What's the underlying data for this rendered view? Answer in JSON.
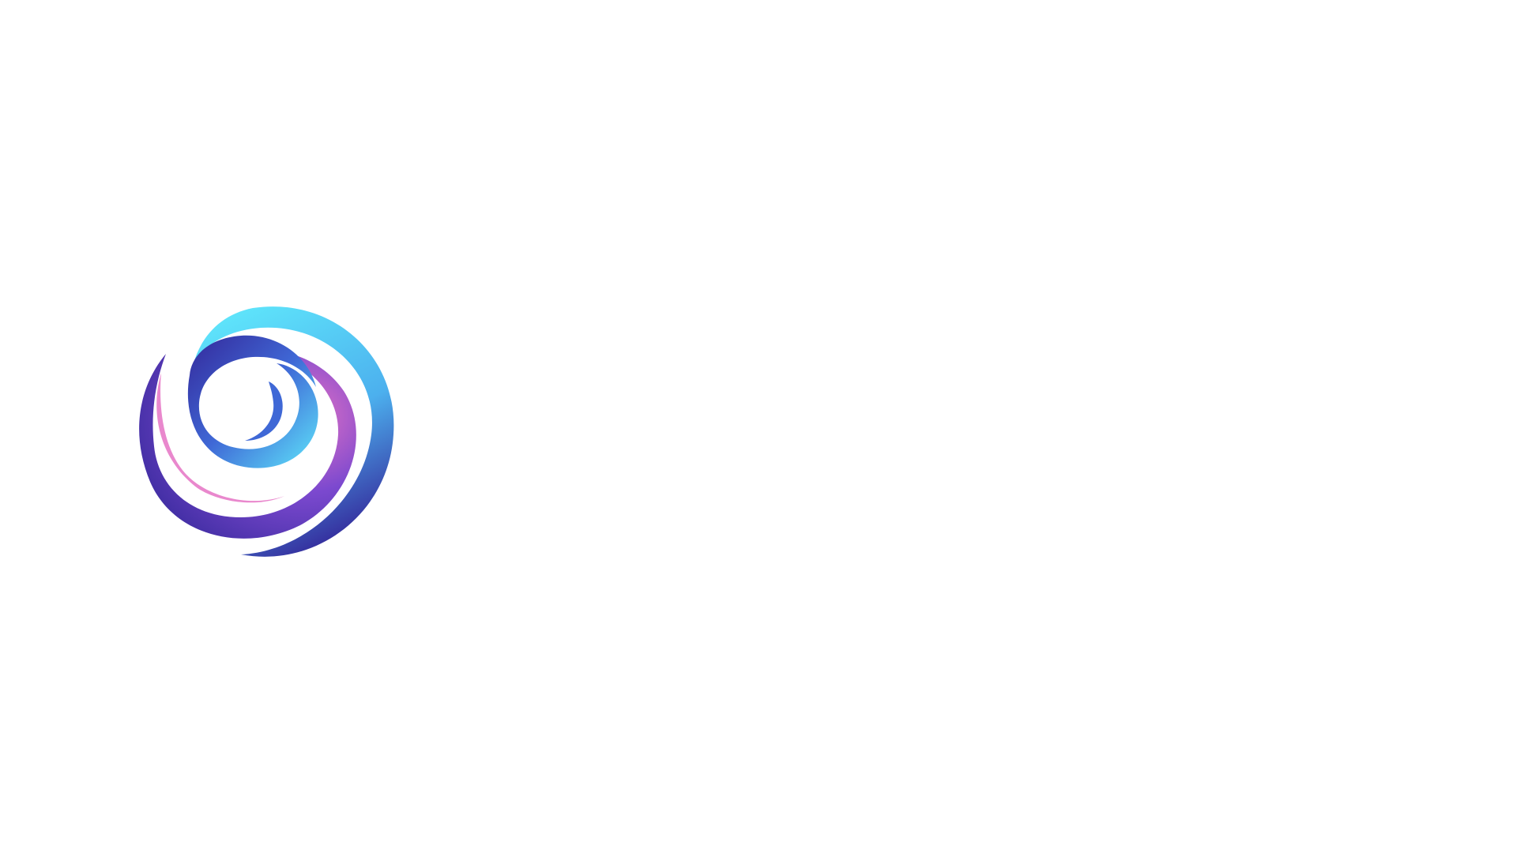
{
  "logo": {
    "icon": "spiral-swirl-icon",
    "colors": {
      "cyan": "#5fe6fb",
      "sky": "#4cb0ee",
      "blue": "#3f68d6",
      "indigo": "#34289a",
      "violet": "#7c49cf",
      "pink": "#e573c4",
      "background": "#ffffff"
    }
  }
}
